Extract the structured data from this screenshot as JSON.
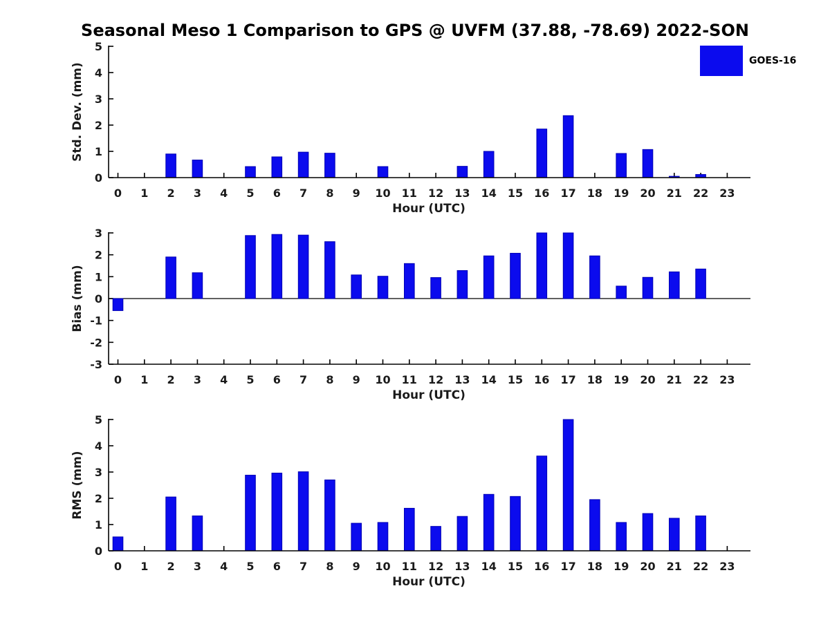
{
  "title": "Seasonal Meso 1 Comparison to GPS @ UVFM (37.88, -78.69) 2022-SON",
  "legend": {
    "label": "GOES-16",
    "color": "#0b0bee",
    "position": "top-right"
  },
  "colors": {
    "bar": "#0b0bee",
    "bar_edge": "#0000b4",
    "axis": "#000000",
    "tick_text": "#1a1a1a"
  },
  "chart_data": [
    {
      "type": "bar",
      "name": "std-dev",
      "ylabel": "Std. Dev. (mm)",
      "xlabel": "Hour (UTC)",
      "ylim": [
        0,
        5
      ],
      "yticks": [
        0,
        1,
        2,
        3,
        4,
        5
      ],
      "grid": false,
      "categories": [
        "0",
        "1",
        "2",
        "3",
        "4",
        "5",
        "6",
        "7",
        "8",
        "9",
        "10",
        "11",
        "12",
        "13",
        "14",
        "15",
        "16",
        "17",
        "18",
        "19",
        "20",
        "21",
        "22",
        "23"
      ],
      "values": [
        0,
        0,
        0.9,
        0.67,
        0,
        0.42,
        0.79,
        0.97,
        0.93,
        0,
        0.42,
        0,
        0,
        0.43,
        1.0,
        0,
        1.85,
        2.36,
        0,
        0.92,
        1.07,
        0.05,
        0.12,
        0
      ]
    },
    {
      "type": "bar",
      "name": "bias",
      "ylabel": "Bias (mm)",
      "xlabel": "Hour (UTC)",
      "ylim": [
        -3,
        3
      ],
      "yticks": [
        -3,
        -2,
        -1,
        0,
        1,
        2,
        3
      ],
      "zero_line": true,
      "grid": false,
      "categories": [
        "0",
        "1",
        "2",
        "3",
        "4",
        "5",
        "6",
        "7",
        "8",
        "9",
        "10",
        "11",
        "12",
        "13",
        "14",
        "15",
        "16",
        "17",
        "18",
        "19",
        "20",
        "21",
        "22",
        "23"
      ],
      "values": [
        -0.55,
        0,
        1.9,
        1.18,
        0,
        2.88,
        2.93,
        2.9,
        2.6,
        1.08,
        1.02,
        1.6,
        0.96,
        1.28,
        1.95,
        2.07,
        3.0,
        3.0,
        1.95,
        0.57,
        0.97,
        1.22,
        1.35,
        0
      ]
    },
    {
      "type": "bar",
      "name": "rms",
      "ylabel": "RMS (mm)",
      "xlabel": "Hour (UTC)",
      "ylim": [
        0,
        5
      ],
      "yticks": [
        0,
        1,
        2,
        3,
        4,
        5
      ],
      "grid": false,
      "categories": [
        "0",
        "1",
        "2",
        "3",
        "4",
        "5",
        "6",
        "7",
        "8",
        "9",
        "10",
        "11",
        "12",
        "13",
        "14",
        "15",
        "16",
        "17",
        "18",
        "19",
        "20",
        "21",
        "22",
        "23"
      ],
      "values": [
        0.53,
        0,
        2.05,
        1.33,
        0,
        2.88,
        2.96,
        3.01,
        2.7,
        1.05,
        1.08,
        1.62,
        0.93,
        1.31,
        2.15,
        2.07,
        3.61,
        5.0,
        1.95,
        1.08,
        1.42,
        1.24,
        1.33,
        0
      ]
    }
  ]
}
